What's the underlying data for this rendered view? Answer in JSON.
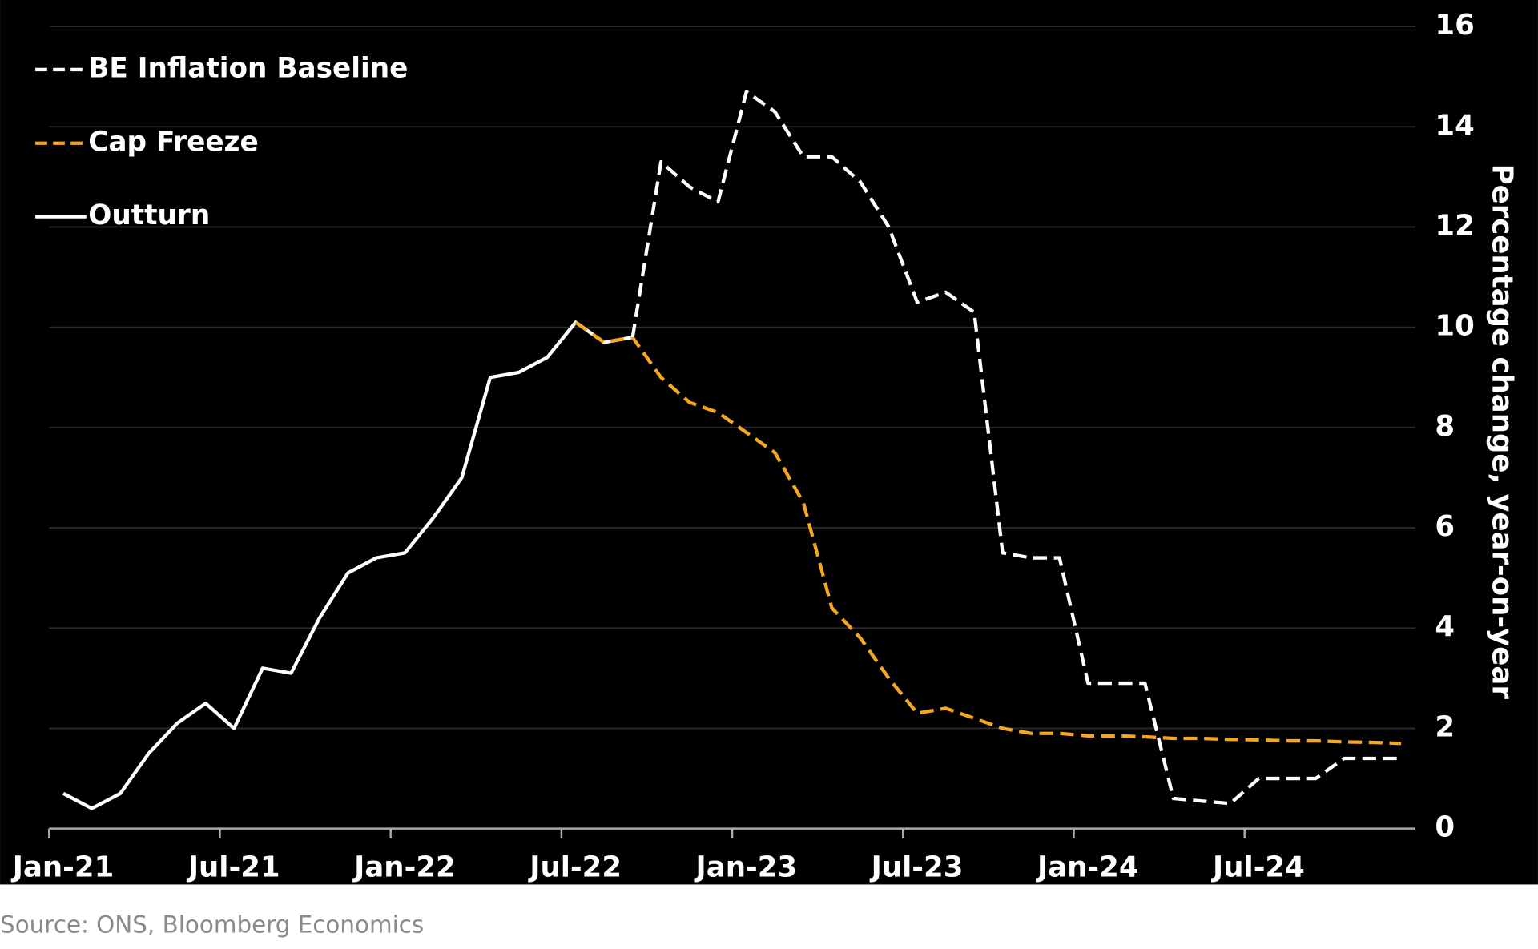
{
  "chart_data": {
    "type": "line",
    "y_label": "Percentage change, year-on-year",
    "source": "Source: ONS, Bloomberg Economics",
    "categories": [
      "Jan-21",
      null,
      null,
      null,
      null,
      null,
      "Jul-21",
      null,
      null,
      null,
      null,
      null,
      "Jan-22",
      null,
      null,
      null,
      null,
      null,
      "Jul-22",
      null,
      null,
      null,
      null,
      null,
      "Jan-23",
      null,
      null,
      null,
      null,
      null,
      "Jul-23",
      null,
      null,
      null,
      null,
      null,
      "Jan-24",
      null,
      null,
      null,
      null,
      null,
      "Jul-24",
      null,
      null,
      null,
      null,
      null
    ],
    "series": [
      {
        "name": "BE Inflation Baseline",
        "color": "#ffffff",
        "dash": true,
        "values": [
          null,
          null,
          null,
          null,
          null,
          null,
          null,
          null,
          null,
          null,
          null,
          null,
          null,
          null,
          null,
          null,
          null,
          null,
          null,
          null,
          9.8,
          13.3,
          12.8,
          12.5,
          14.7,
          14.3,
          13.4,
          13.4,
          12.9,
          12.0,
          10.5,
          10.7,
          10.3,
          5.5,
          5.4,
          5.4,
          2.9,
          2.9,
          2.9,
          0.6,
          0.55,
          0.5,
          1.0,
          1.0,
          1.0,
          1.4,
          1.4,
          1.4
        ]
      },
      {
        "name": "Cap Freeze",
        "color": "#f5a623",
        "dash": true,
        "values": [
          null,
          null,
          null,
          null,
          null,
          null,
          null,
          null,
          null,
          null,
          null,
          null,
          null,
          null,
          null,
          null,
          null,
          null,
          10.1,
          9.7,
          9.8,
          9.0,
          8.5,
          8.3,
          7.9,
          7.5,
          6.5,
          4.4,
          3.8,
          3.0,
          2.3,
          2.4,
          2.2,
          2.0,
          1.9,
          1.9,
          1.85,
          1.85,
          1.83,
          1.8,
          1.8,
          1.78,
          1.77,
          1.75,
          1.75,
          1.73,
          1.72,
          1.7
        ]
      },
      {
        "name": "Outturn",
        "color": "#ffffff",
        "dash": false,
        "values": [
          0.7,
          0.4,
          0.7,
          1.5,
          2.1,
          2.5,
          2.0,
          3.2,
          3.1,
          4.2,
          5.1,
          5.4,
          5.5,
          6.2,
          7.0,
          9.0,
          9.1,
          9.4,
          10.1,
          9.7,
          9.8,
          null,
          null,
          null,
          null,
          null,
          null,
          null,
          null,
          null,
          null,
          null,
          null,
          null,
          null,
          null,
          null,
          null,
          null,
          null,
          null,
          null,
          null,
          null,
          null,
          null,
          null,
          null
        ]
      }
    ],
    "ylim": [
      0,
      16
    ],
    "yticks": [
      0,
      2,
      4,
      6,
      8,
      10,
      12,
      14,
      16
    ],
    "grid": true,
    "legend": "top-left"
  }
}
